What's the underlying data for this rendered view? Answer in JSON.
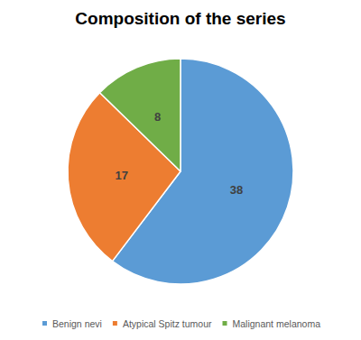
{
  "chart_data": {
    "type": "pie",
    "title": "Composition of the series",
    "categories": [
      "Benign nevi",
      "Atypical Spitz tumour",
      "Malignant melanoma"
    ],
    "values": [
      38,
      17,
      8
    ],
    "colors": [
      "#5B9BD5",
      "#ED7D31",
      "#70AD47"
    ],
    "data_labels": true,
    "legend": "bottom"
  }
}
